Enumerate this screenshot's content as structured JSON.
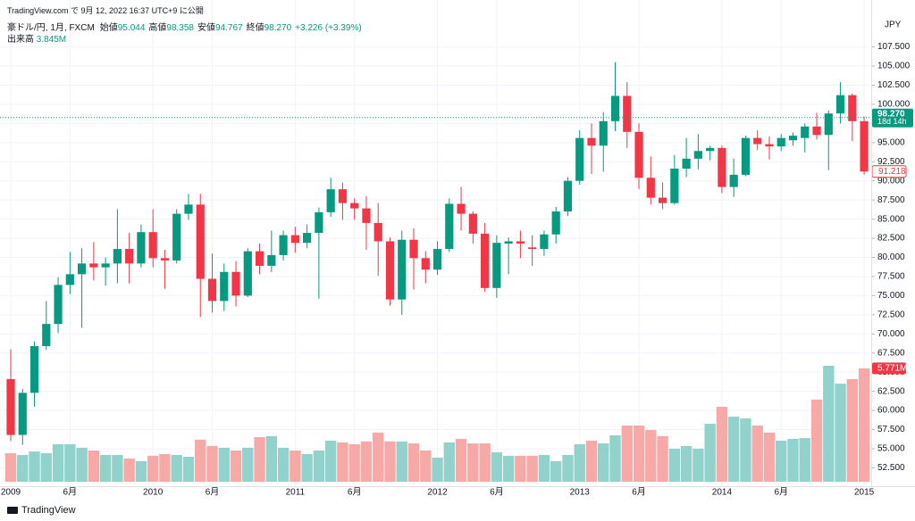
{
  "chart_data": {
    "type": "candlestick",
    "header": {
      "published": "TradingView.com で 9月 12, 2022 16:37 UTC+9 に公開",
      "symbol": "豪ドル/円, 1月, FXCM",
      "ohlc": [
        {
          "label": "始値",
          "value": "95.044"
        },
        {
          "label": "高値",
          "value": "98.358"
        },
        {
          "label": "安値",
          "value": "94.767"
        },
        {
          "label": "終値",
          "value": "98.270"
        }
      ],
      "change": "+3.226 (+3.39%)",
      "volume_label": "出来高",
      "volume_value": "3.845M"
    },
    "currency": "JPY",
    "footer": "TradingView",
    "categories": [
      "2009",
      null,
      null,
      null,
      null,
      "6月",
      null,
      null,
      null,
      null,
      null,
      null,
      "2010",
      null,
      null,
      null,
      null,
      "6月",
      null,
      null,
      null,
      null,
      null,
      null,
      "2011",
      null,
      null,
      null,
      null,
      "6月",
      null,
      null,
      null,
      null,
      null,
      null,
      "2012",
      null,
      null,
      null,
      null,
      "6月",
      null,
      null,
      null,
      null,
      null,
      null,
      "2013",
      null,
      null,
      null,
      null,
      "6月",
      null,
      null,
      null,
      null,
      null,
      null,
      "2014",
      null,
      null,
      null,
      null,
      "6月",
      null,
      null,
      null,
      null,
      null,
      null,
      "2015"
    ],
    "open": [
      64.1,
      56.8,
      62.3,
      68.4,
      71.3,
      76.4,
      77.8,
      79.2,
      78.7,
      79.2,
      81.1,
      79.2,
      83.3,
      79.9,
      79.6,
      85.7,
      86.9,
      77.2,
      74.3,
      78.1,
      75.0,
      80.8,
      78.9,
      80.3,
      82.9,
      81.9,
      83.2,
      85.9,
      88.9,
      87.1,
      86.4,
      84.5,
      82.1,
      74.5,
      82.3,
      79.9,
      78.4,
      81.1,
      87.0,
      85.7,
      83.1,
      76.0,
      81.8,
      82.1,
      81.3,
      81.1,
      83.0,
      86.0,
      90.0,
      95.6,
      94.6,
      97.8,
      101.1,
      96.4,
      90.4,
      87.8,
      87.1,
      91.6,
      92.9,
      93.9,
      94.3,
      89.2,
      90.8,
      95.6,
      94.8,
      94.5,
      95.3,
      95.6,
      97.1,
      96.0,
      98.8,
      101.2,
      97.8
    ],
    "high": [
      68.0,
      62.8,
      69.0,
      74.3,
      77.4,
      80.7,
      81.2,
      82.0,
      80.0,
      86.3,
      83.2,
      84.3,
      86.3,
      81.0,
      86.3,
      88.3,
      88.3,
      80.5,
      79.2,
      79.5,
      81.2,
      81.8,
      83.5,
      83.5,
      84.0,
      84.3,
      86.5,
      90.4,
      89.8,
      87.7,
      88.0,
      87.1,
      82.6,
      83.5,
      83.8,
      80.8,
      82.1,
      87.7,
      89.2,
      86.0,
      84.5,
      82.9,
      82.6,
      83.5,
      82.9,
      83.5,
      86.6,
      90.5,
      96.6,
      97.5,
      99.0,
      105.5,
      102.9,
      97.5,
      93.2,
      89.8,
      93.4,
      95.6,
      96.1,
      94.6,
      94.6,
      92.9,
      95.9,
      96.6,
      95.8,
      96.1,
      96.3,
      97.5,
      98.9,
      99.2,
      102.9,
      101.4,
      98.4
    ],
    "low": [
      56.0,
      55.5,
      60.5,
      67.9,
      70.1,
      75.2,
      70.8,
      77.0,
      76.3,
      76.6,
      76.6,
      78.7,
      78.7,
      75.9,
      79.2,
      84.9,
      72.2,
      72.8,
      73.0,
      73.6,
      74.8,
      77.8,
      78.1,
      79.6,
      80.6,
      81.2,
      74.6,
      85.3,
      84.9,
      84.9,
      81.0,
      77.6,
      73.7,
      72.5,
      75.8,
      76.6,
      77.7,
      80.7,
      83.5,
      81.8,
      75.5,
      74.7,
      77.8,
      79.9,
      78.9,
      80.2,
      81.8,
      85.4,
      89.5,
      90.9,
      91.2,
      96.5,
      94.3,
      88.9,
      86.9,
      86.3,
      86.9,
      90.5,
      91.5,
      92.7,
      88.4,
      87.9,
      90.6,
      94.0,
      92.8,
      93.9,
      94.6,
      93.7,
      95.4,
      91.4,
      97.5,
      95.2,
      90.8
    ],
    "close": [
      56.8,
      62.3,
      68.4,
      71.3,
      76.4,
      77.8,
      79.2,
      78.7,
      79.2,
      81.1,
      79.2,
      83.3,
      79.9,
      79.6,
      85.7,
      86.9,
      77.2,
      74.3,
      78.1,
      75.0,
      80.8,
      78.9,
      80.3,
      82.9,
      81.9,
      83.2,
      85.9,
      88.9,
      87.1,
      86.4,
      84.5,
      82.1,
      74.5,
      82.3,
      79.9,
      78.4,
      81.1,
      87.0,
      85.7,
      83.1,
      76.0,
      81.9,
      82.1,
      81.8,
      81.1,
      83.0,
      86.0,
      90.0,
      95.6,
      94.6,
      97.8,
      101.1,
      96.4,
      90.4,
      87.8,
      87.1,
      91.6,
      92.9,
      93.9,
      94.3,
      89.2,
      90.8,
      95.6,
      94.8,
      94.5,
      95.6,
      95.9,
      97.1,
      96.0,
      98.8,
      101.2,
      97.8,
      91.218
    ],
    "volume": [
      1.45,
      1.36,
      1.54,
      1.45,
      1.91,
      1.91,
      1.73,
      1.59,
      1.36,
      1.36,
      1.18,
      1.05,
      1.32,
      1.41,
      1.36,
      1.27,
      2.14,
      1.82,
      1.73,
      1.59,
      1.73,
      2.27,
      2.32,
      1.73,
      1.59,
      1.41,
      1.59,
      2.09,
      2.0,
      1.91,
      2.05,
      2.5,
      2.05,
      2.05,
      1.95,
      1.59,
      1.23,
      2.0,
      2.18,
      1.95,
      1.95,
      1.5,
      1.32,
      1.32,
      1.32,
      1.36,
      1.05,
      1.36,
      1.91,
      2.09,
      1.95,
      2.36,
      2.86,
      2.86,
      2.63,
      2.32,
      1.68,
      1.82,
      1.68,
      2.95,
      3.81,
      3.31,
      3.22,
      2.86,
      2.5,
      2.09,
      2.18,
      2.22,
      4.18,
      5.9,
      4.99,
      5.22,
      5.771
    ],
    "up_color": "#089981",
    "down_color": "#f23645",
    "volume_up_color": "#92d2cc",
    "volume_down_color": "#f7a9a7",
    "ylim": [
      50.1,
      111.3
    ],
    "yticks": [
      {
        "value": 107.5,
        "label": "107.500"
      },
      {
        "value": 105,
        "label": "105.000"
      },
      {
        "value": 102.5,
        "label": "102.500"
      },
      {
        "value": 100,
        "label": "100.000"
      },
      {
        "value": 97.5,
        "label": "97.500"
      },
      {
        "value": 95,
        "label": "95.000"
      },
      {
        "value": 92.5,
        "label": "92.500"
      },
      {
        "value": 90,
        "label": "90.000"
      },
      {
        "value": 87.5,
        "label": "87.500"
      },
      {
        "value": 85,
        "label": "85.000"
      },
      {
        "value": 82.5,
        "label": "82.500"
      },
      {
        "value": 80,
        "label": "80.000"
      },
      {
        "value": 77.5,
        "label": "77.500"
      },
      {
        "value": 75,
        "label": "75.000"
      },
      {
        "value": 72.5,
        "label": "72.500"
      },
      {
        "value": 70,
        "label": "70.000"
      },
      {
        "value": 67.5,
        "label": "67.500"
      },
      {
        "value": 65,
        "label": "65.000"
      },
      {
        "value": 62.5,
        "label": "62.500"
      },
      {
        "value": 60,
        "label": "60.000"
      },
      {
        "value": 57.5,
        "label": "57.500"
      },
      {
        "value": 55,
        "label": "55.000"
      },
      {
        "value": 52.5,
        "label": "52.500"
      }
    ],
    "grid": true,
    "current_price": {
      "value": 98.27,
      "label": "98.270",
      "countdown": "18d 14h"
    },
    "last_close_label": "91.218",
    "volume_last_label": "5.771M"
  }
}
